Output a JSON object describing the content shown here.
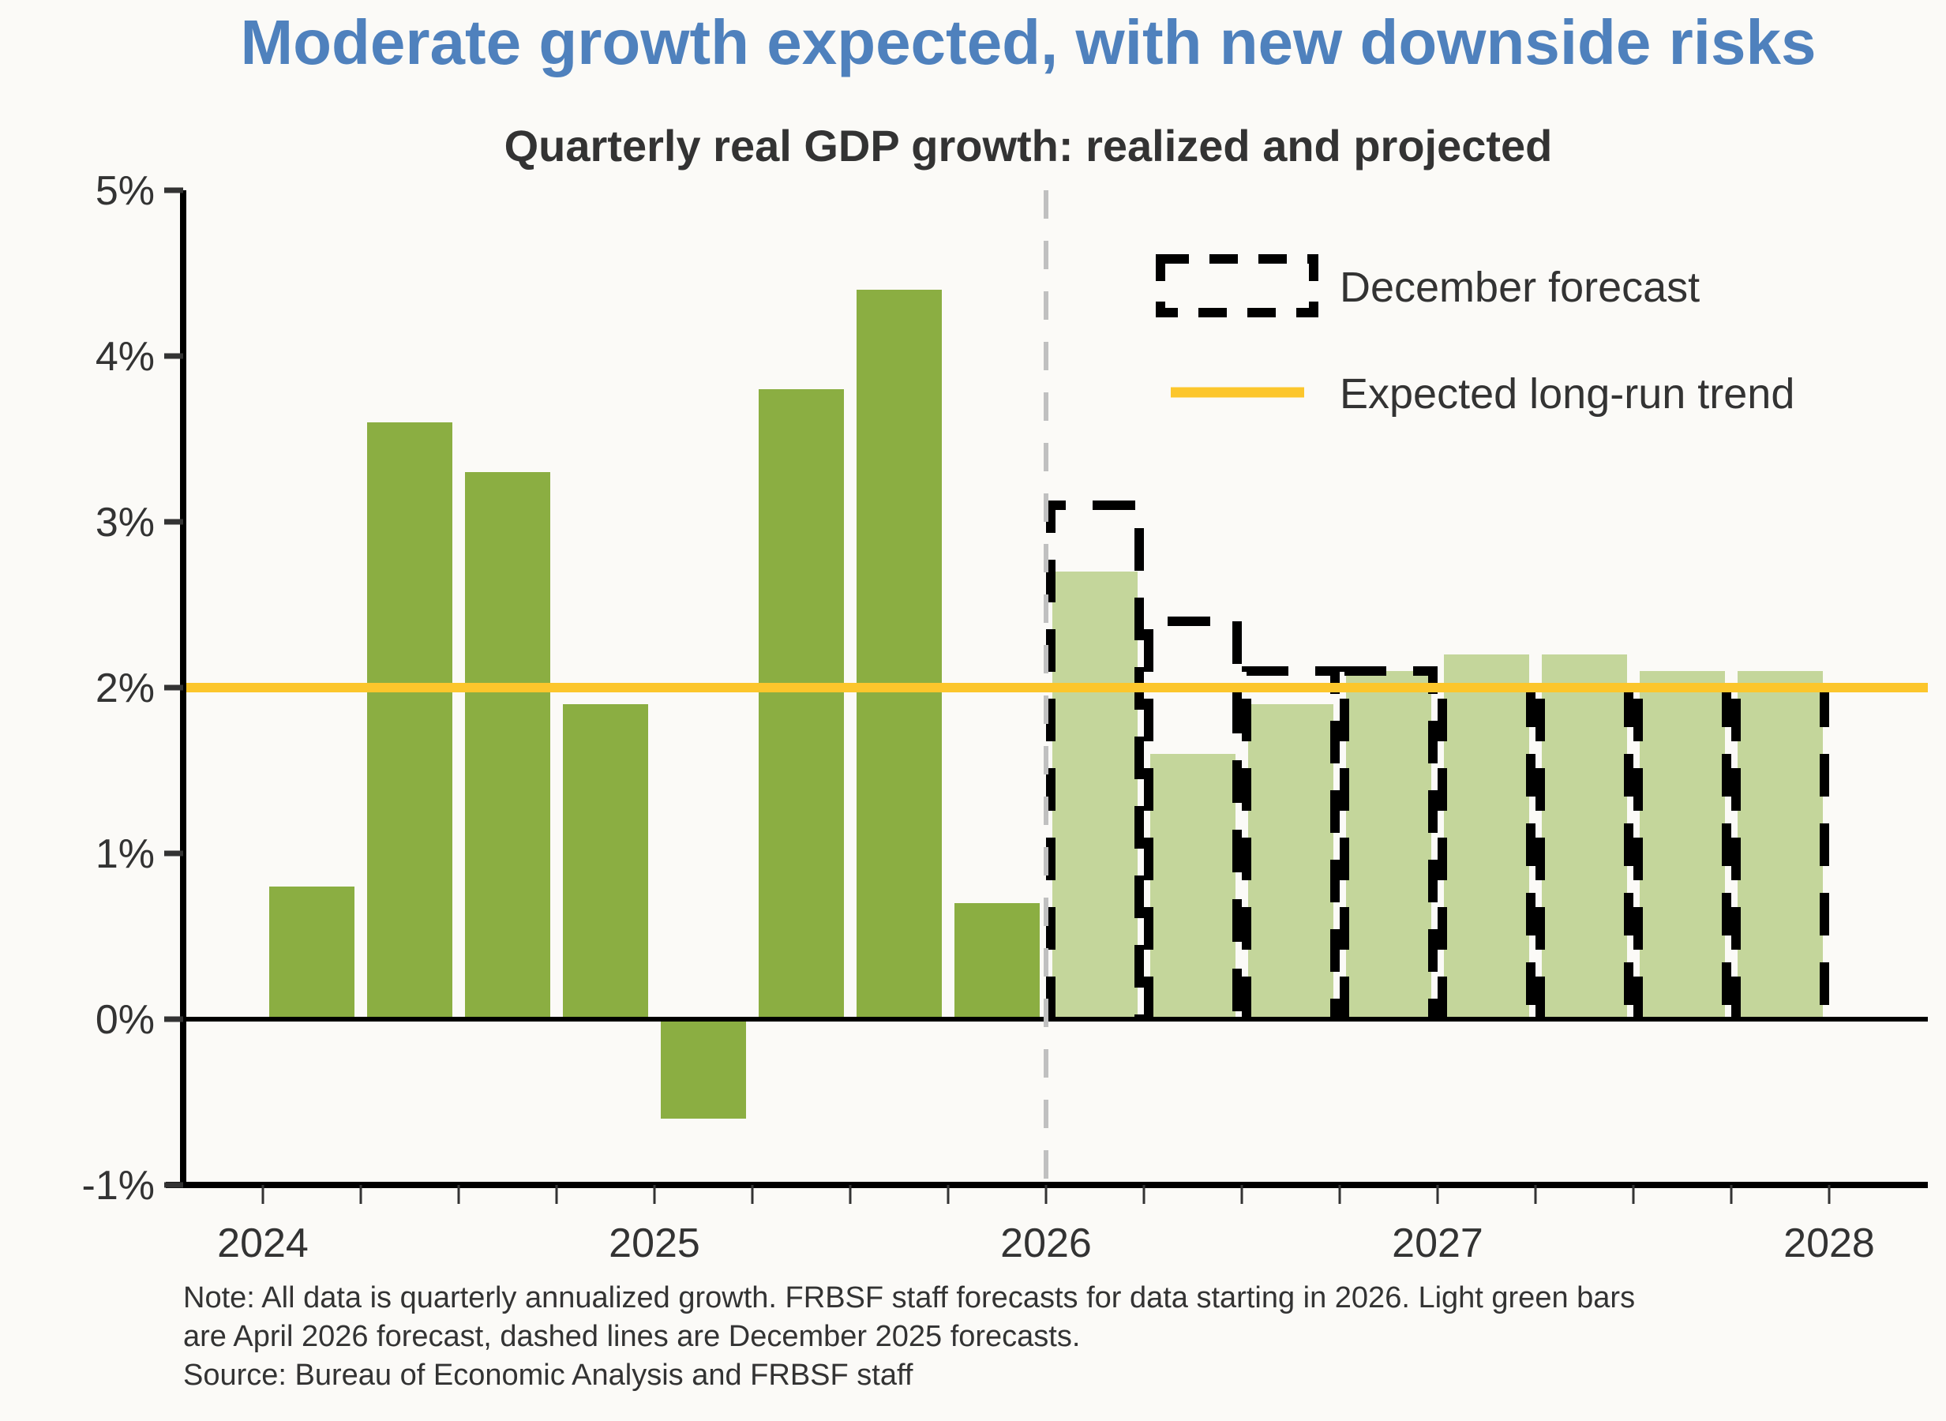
{
  "title": "Moderate growth expected, with new downside risks",
  "subtitle": "Quarterly real GDP growth: realized and projected",
  "colors": {
    "title": "#4f81bd",
    "realized": "#8bae42",
    "projected": "#c4d69b",
    "trend": "#fcc62c",
    "dec_forecast": "#000000",
    "divider": "#c0c0c0"
  },
  "legend": {
    "dec_forecast": "December forecast",
    "trend": "Expected long-run trend"
  },
  "notes": {
    "line1": "Note: All data is quarterly annualized growth. FRBSF staff forecasts for data starting in 2026. Light green bars",
    "line2": "are April 2026 forecast, dashed lines are December 2025 forecasts.",
    "source": "Source: Bureau of Economic Analysis and FRBSF staff"
  },
  "chart_data": {
    "type": "bar",
    "title": "Quarterly real GDP growth: realized and projected",
    "xlabel": "",
    "ylabel": "",
    "ylim": [
      -1,
      5
    ],
    "yticks": [
      "-1%",
      "0%",
      "1%",
      "2%",
      "3%",
      "4%",
      "5%"
    ],
    "ytick_values": [
      -1,
      0,
      1,
      2,
      3,
      4,
      5
    ],
    "xtick_labels": [
      "2024",
      "2025",
      "2026",
      "2027",
      "2028"
    ],
    "categories": [
      "2024Q1",
      "2024Q2",
      "2024Q3",
      "2024Q4",
      "2025Q1",
      "2025Q2",
      "2025Q3",
      "2025Q4",
      "2026Q1",
      "2026Q2",
      "2026Q3",
      "2026Q4",
      "2027Q1",
      "2027Q2",
      "2027Q3",
      "2027Q4"
    ],
    "series": [
      {
        "name": "Realized",
        "style": "bar-dark-green",
        "values": [
          0.8,
          3.6,
          3.3,
          1.9,
          -0.6,
          3.8,
          4.4,
          0.7,
          null,
          null,
          null,
          null,
          null,
          null,
          null,
          null
        ]
      },
      {
        "name": "April 2026 forecast",
        "style": "bar-light-green",
        "values": [
          null,
          null,
          null,
          null,
          null,
          null,
          null,
          null,
          2.7,
          1.6,
          1.9,
          2.1,
          2.2,
          2.2,
          2.1,
          2.1
        ]
      },
      {
        "name": "December forecast",
        "style": "dashed-outline",
        "values": [
          null,
          null,
          null,
          null,
          null,
          null,
          null,
          null,
          3.1,
          2.4,
          2.1,
          2.1,
          2.0,
          2.0,
          2.0,
          2.0
        ]
      }
    ],
    "reference_lines": [
      {
        "name": "Expected long-run trend",
        "y": 2.0,
        "orientation": "horizontal"
      },
      {
        "name": "Forecast start",
        "x": "2026",
        "orientation": "vertical",
        "style": "dashed"
      }
    ],
    "grid": false,
    "legend_position": "top-right"
  }
}
